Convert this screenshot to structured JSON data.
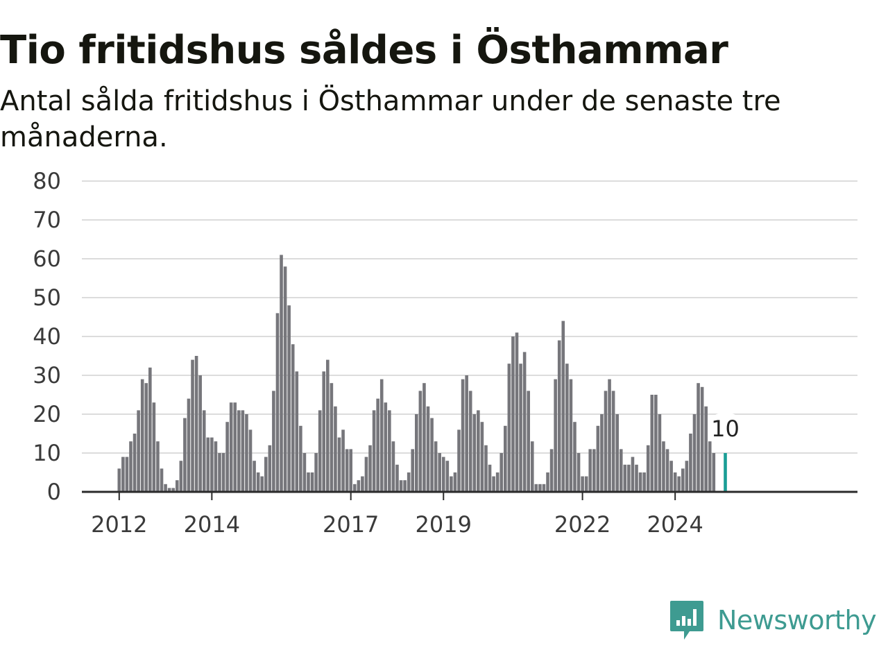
{
  "header": {
    "title": "Tio fritidshus såldes i Östhammar",
    "subtitle": "Antal sålda fritidshus i Östhammar under de senaste tre månaderna."
  },
  "brand": {
    "name": "Newsworthy",
    "logo_icon": "newsworthy-logo-icon",
    "color": "#3e9b91"
  },
  "chart_data": {
    "type": "bar",
    "title": "Tio fritidshus såldes i Östhammar",
    "subtitle": "Antal sålda fritidshus i Östhammar under de senaste tre månaderna.",
    "xlabel": "",
    "ylabel": "",
    "ylim": [
      0,
      80
    ],
    "yticks": [
      "0",
      "10",
      "20",
      "30",
      "40",
      "50",
      "60",
      "70",
      "80"
    ],
    "grid": true,
    "start_month": "2012-01",
    "xticks": [
      {
        "label": "2012",
        "month": "2012-01"
      },
      {
        "label": "2014",
        "month": "2014-01"
      },
      {
        "label": "2017",
        "month": "2017-01"
      },
      {
        "label": "2019",
        "month": "2019-01"
      },
      {
        "label": "2022",
        "month": "2022-01"
      },
      {
        "label": "2024",
        "month": "2024-01"
      }
    ],
    "bar_color": "#76767b",
    "highlight_color": "#1a9e96",
    "highlight": {
      "month": "2025-02",
      "value": 10,
      "label": "10"
    },
    "values": [
      6,
      9,
      9,
      13,
      15,
      21,
      29,
      28,
      32,
      23,
      13,
      6,
      2,
      1,
      1,
      3,
      8,
      19,
      24,
      34,
      35,
      30,
      21,
      14,
      14,
      13,
      10,
      10,
      18,
      23,
      23,
      21,
      21,
      20,
      16,
      8,
      5,
      4,
      9,
      12,
      26,
      46,
      61,
      58,
      48,
      38,
      31,
      17,
      10,
      5,
      5,
      10,
      21,
      31,
      34,
      28,
      22,
      14,
      16,
      11,
      11,
      2,
      3,
      4,
      9,
      12,
      21,
      24,
      29,
      23,
      21,
      13,
      7,
      3,
      3,
      5,
      11,
      20,
      26,
      28,
      22,
      19,
      13,
      10,
      9,
      8,
      4,
      5,
      16,
      29,
      30,
      26,
      20,
      21,
      18,
      12,
      7,
      4,
      5,
      10,
      17,
      33,
      40,
      41,
      33,
      36,
      26,
      13,
      2,
      2,
      2,
      5,
      11,
      29,
      39,
      44,
      33,
      29,
      18,
      10,
      4,
      4,
      11,
      11,
      17,
      20,
      26,
      29,
      26,
      20,
      11,
      7,
      7,
      9,
      7,
      5,
      5,
      12,
      25,
      25,
      20,
      13,
      11,
      8,
      5,
      4,
      6,
      8,
      15,
      20,
      28,
      27,
      22,
      13,
      10
    ]
  }
}
